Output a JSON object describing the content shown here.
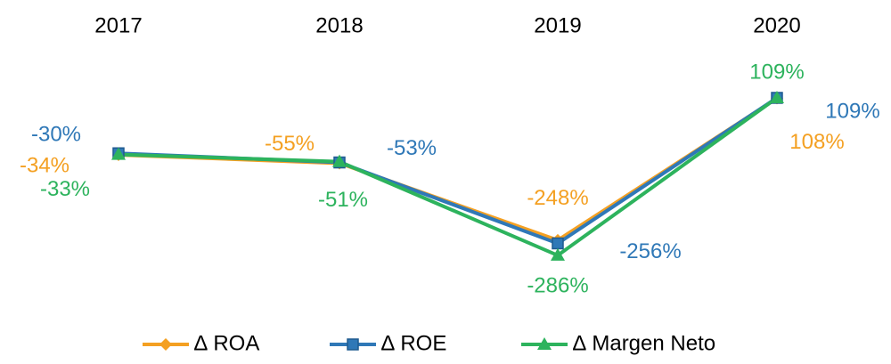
{
  "chart_data": {
    "type": "line",
    "categories": [
      "2017",
      "2018",
      "2019",
      "2020"
    ],
    "ylim": [
      -400,
      200
    ],
    "legend": "bottom",
    "series": [
      {
        "name": "∆ ROA",
        "color": "#f4a022",
        "marker": "diamond",
        "values": [
          -34,
          -55,
          -248,
          108
        ],
        "value_labels": [
          "-34%",
          "-55%",
          "-248%",
          "108%"
        ]
      },
      {
        "name": "∆ ROE",
        "color": "#2f78b7",
        "marker": "square",
        "values": [
          -30,
          -53,
          -256,
          109
        ],
        "value_labels": [
          "-30%",
          "-53%",
          "-256%",
          "109%"
        ]
      },
      {
        "name": "∆ Margen Neto",
        "color": "#2db35d",
        "marker": "triangle",
        "values": [
          -33,
          -51,
          -286,
          109
        ],
        "value_labels": [
          "-33%",
          "-51%",
          "-286%",
          "109%"
        ]
      }
    ]
  }
}
